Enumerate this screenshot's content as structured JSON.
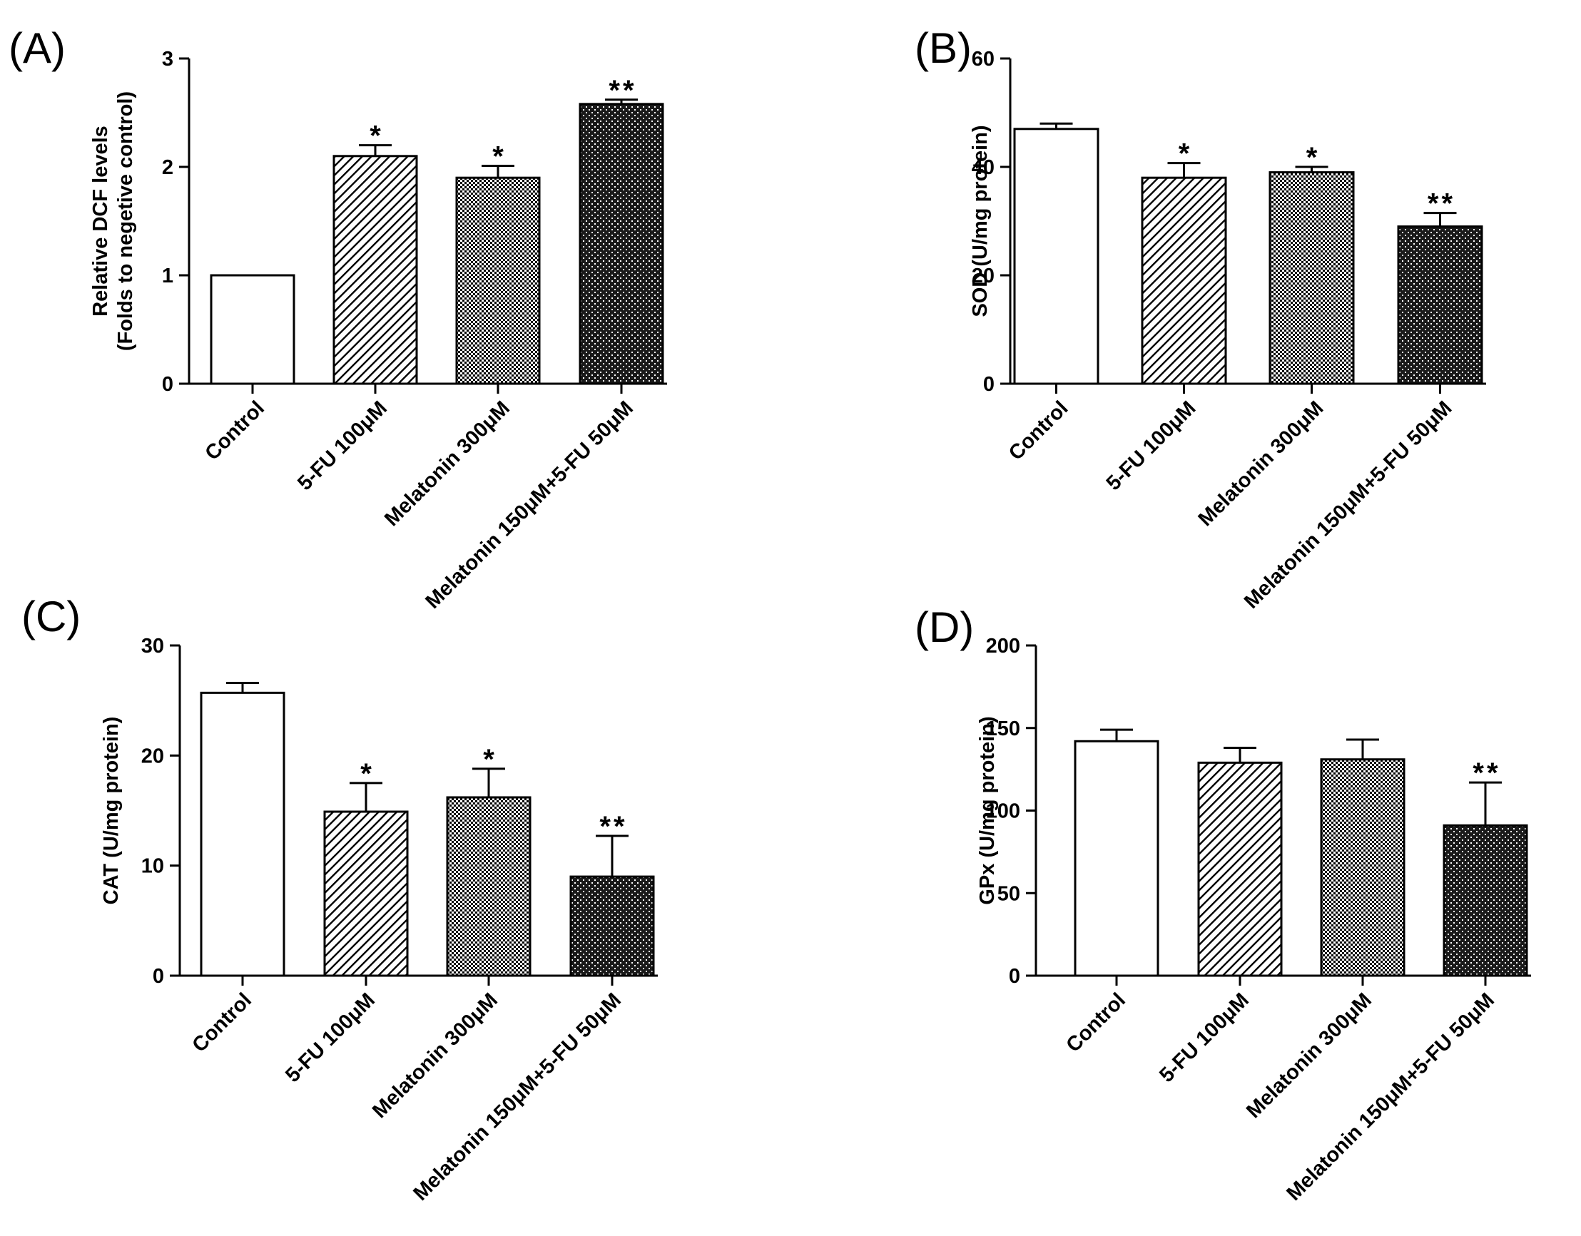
{
  "chart_data": [
    {
      "type": "bar",
      "panel": "(A)",
      "ylabel": [
        "Relative DCF levels",
        "(Folds to negetive control)"
      ],
      "ylim": [
        0,
        3
      ],
      "yticks": [
        0,
        1,
        2,
        3
      ],
      "categories": [
        "Control",
        "5-FU 100μM",
        "Melatonin 300μM",
        "Melatonin 150μM+5-FU 50μM"
      ],
      "values": [
        1.0,
        2.1,
        1.9,
        2.58
      ],
      "errors": [
        0.0,
        0.1,
        0.11,
        0.04
      ],
      "significance": [
        "",
        "*",
        "*",
        "**"
      ]
    },
    {
      "type": "bar",
      "panel": "(B)",
      "ylabel": [
        "SOD (U/mg protein)"
      ],
      "ylim": [
        0,
        60
      ],
      "yticks": [
        0,
        20,
        40,
        60
      ],
      "categories": [
        "Control",
        "5-FU 100μM",
        "Melatonin 300μM",
        "Melatonin 150μM+5-FU 50μM"
      ],
      "values": [
        47,
        38,
        39,
        29
      ],
      "errors": [
        1,
        2.7,
        1,
        2.5
      ],
      "significance": [
        "",
        "*",
        "*",
        "**"
      ]
    },
    {
      "type": "bar",
      "panel": "(C)",
      "ylabel": [
        "CAT (U/mg protein)"
      ],
      "ylim": [
        0,
        30
      ],
      "yticks": [
        0,
        10,
        20,
        30
      ],
      "categories": [
        "Control",
        "5-FU 100μM",
        "Melatonin 300μM",
        "Melatonin 150μM+5-FU 50μM"
      ],
      "values": [
        25.7,
        14.9,
        16.2,
        9.0
      ],
      "errors": [
        0.9,
        2.6,
        2.6,
        3.7
      ],
      "significance": [
        "",
        "*",
        "*",
        "**"
      ]
    },
    {
      "type": "bar",
      "panel": "(D)",
      "ylabel": [
        "GPx (U/mg protein)"
      ],
      "ylim": [
        0,
        200
      ],
      "yticks": [
        0,
        50,
        100,
        150,
        200
      ],
      "categories": [
        "Control",
        "5-FU 100μM",
        "Melatonin 300μM",
        "Melatonin 150μM+5-FU 50μM"
      ],
      "values": [
        142,
        129,
        131,
        91
      ],
      "errors": [
        7,
        9,
        12,
        26
      ],
      "significance": [
        "",
        "",
        "",
        "**"
      ]
    }
  ],
  "colors": {
    "ink": "#000000",
    "control_fill": "#ffffff"
  }
}
